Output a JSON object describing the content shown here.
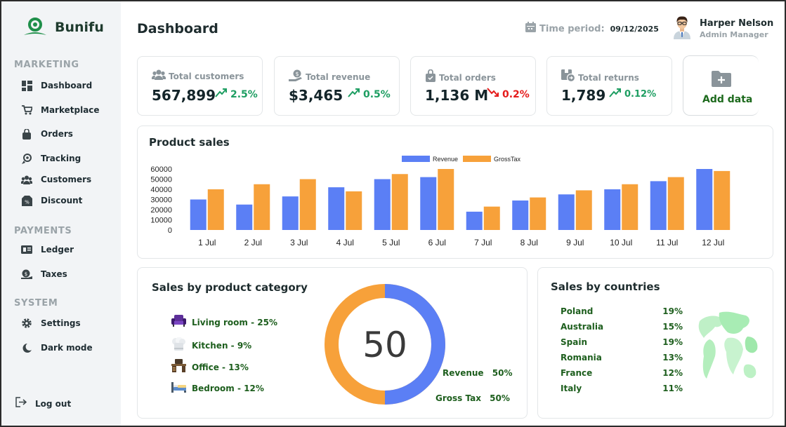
{
  "brand": {
    "name": "Bunifu"
  },
  "sidebar": {
    "sections": [
      {
        "title": "MARKETING",
        "items": [
          {
            "label": "Dashboard",
            "icon": "dashboard-icon"
          },
          {
            "label": "Marketplace",
            "icon": "cart-icon"
          },
          {
            "label": "Orders",
            "icon": "bag-icon"
          },
          {
            "label": "Tracking",
            "icon": "tracking-icon"
          },
          {
            "label": "Customers",
            "icon": "users-icon"
          },
          {
            "label": "Discount",
            "icon": "discount-icon"
          }
        ]
      },
      {
        "title": "PAYMENTS",
        "items": [
          {
            "label": "Ledger",
            "icon": "ledger-icon"
          },
          {
            "label": "Taxes",
            "icon": "taxes-icon"
          }
        ]
      },
      {
        "title": "SYSTEM",
        "items": [
          {
            "label": "Settings",
            "icon": "gear-icon"
          },
          {
            "label": "Dark mode",
            "icon": "dark-mode-icon"
          }
        ]
      }
    ],
    "logout": "Log out"
  },
  "header": {
    "title": "Dashboard",
    "time_period_label": "Time period:",
    "time_period_value": "09/12/2025",
    "user_name": "Harper Nelson",
    "user_role": "Admin Manager"
  },
  "stats": [
    {
      "label": "Total customers",
      "value": "567,899",
      "change": "2.5%",
      "direction": "up",
      "icon": "users-icon"
    },
    {
      "label": "Total revenue",
      "value": "$3,465",
      "change": "0.5%",
      "direction": "up",
      "icon": "hand-money-icon"
    },
    {
      "label": "Total orders",
      "value": "1,136 M",
      "change": "0.2%",
      "direction": "down",
      "icon": "shopping-bag-icon"
    },
    {
      "label": "Total returns",
      "value": "1,789",
      "change": "0.12%",
      "direction": "up",
      "icon": "return-box-icon"
    }
  ],
  "add_data": {
    "label": "Add data",
    "icon": "folder-add-icon"
  },
  "colors": {
    "revenue": "#5b7ff5",
    "gross_tax": "#f7a13a",
    "up": "#1e9e62",
    "down": "#e51b1b",
    "green_text": "#1d5e1d"
  },
  "product_sales": {
    "title": "Product sales"
  },
  "chart_data": {
    "type": "bar",
    "categories": [
      "1 Jul",
      "2 Jul",
      "3 Jul",
      "4 Jul",
      "5 Jul",
      "6 Jul",
      "7 Jul",
      "8 Jul",
      "9 Jul",
      "10 Jul",
      "11 Jul",
      "12 Jul"
    ],
    "series": [
      {
        "name": "Revenue",
        "values": [
          30000,
          25000,
          33000,
          42000,
          50000,
          52000,
          18000,
          29000,
          35000,
          40000,
          48000,
          60000
        ]
      },
      {
        "name": "GrossTax",
        "values": [
          40000,
          45000,
          50000,
          38000,
          55000,
          60000,
          23000,
          32000,
          39000,
          45000,
          52000,
          58000
        ]
      }
    ],
    "yticks": [
      60000,
      50000,
      40000,
      30000,
      20000,
      10000,
      0
    ],
    "ylim": [
      0,
      60000
    ],
    "legend_position": "top",
    "grid": false
  },
  "category_sales": {
    "title": "Sales by product category",
    "items": [
      {
        "label": "Living room - 25%",
        "icon": "sofa-icon"
      },
      {
        "label": "Kitchen - 9%",
        "icon": "chef-hat-icon"
      },
      {
        "label": "Office - 13%",
        "icon": "desk-icon"
      },
      {
        "label": "Bedroom - 12%",
        "icon": "bed-icon"
      }
    ],
    "donut_center": "50",
    "donut": [
      {
        "name": "Revenue",
        "value": 50
      },
      {
        "name": "Gross Tax",
        "value": 50
      }
    ],
    "revenue_label": "Revenue",
    "revenue_pct": "50%",
    "tax_label": "Gross Tax",
    "tax_pct": "50%"
  },
  "country_sales": {
    "title": "Sales by countries",
    "rows": [
      {
        "country": "Poland",
        "pct": "19%"
      },
      {
        "country": "Australia",
        "pct": "15%"
      },
      {
        "country": "Spain",
        "pct": "19%"
      },
      {
        "country": "Romania",
        "pct": "13%"
      },
      {
        "country": "France",
        "pct": "12%"
      },
      {
        "country": "Italy",
        "pct": "11%"
      }
    ]
  }
}
